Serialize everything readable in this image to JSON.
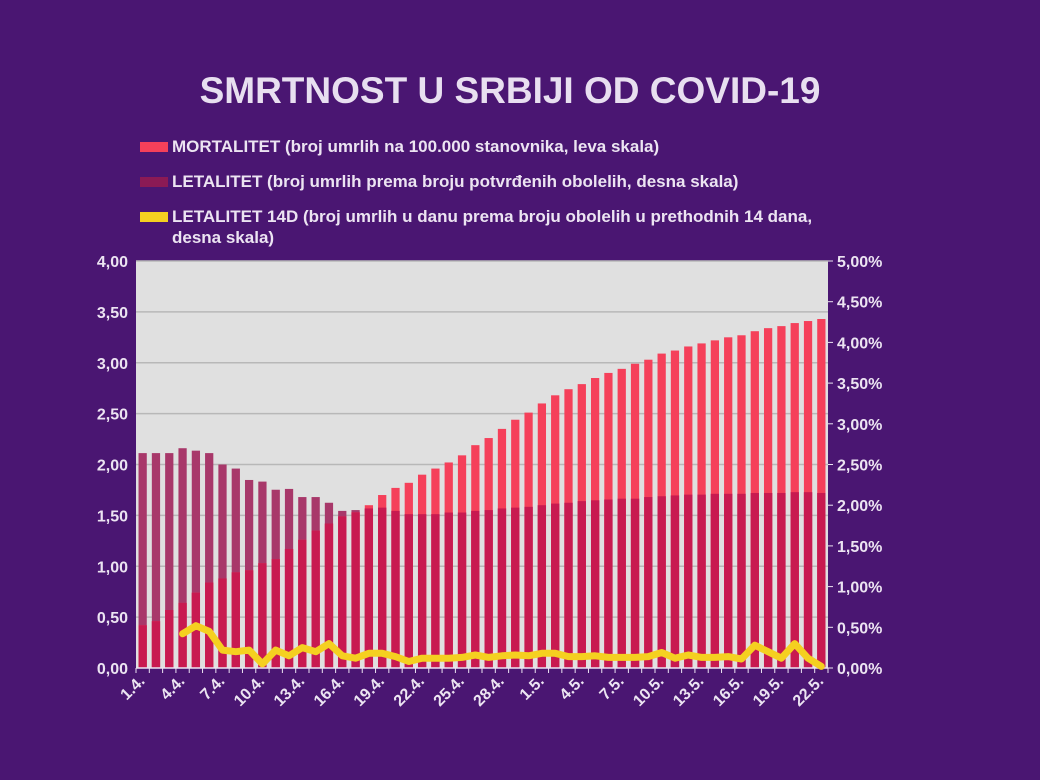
{
  "title": "SMRTNOST U SRBIJI OD COVID-19",
  "legend": [
    {
      "label": "MORTALITET (broj umrlih na 100.000 stanovnika, leva skala)",
      "color": "#f5405a"
    },
    {
      "label": "LETALITET (broj umrlih prema broju potvrđenih obolelih, desna skala)",
      "color": "#8b1a55"
    },
    {
      "label": "LETALITET 14D (broj umrlih u danu prema broju obolelih u prethodnih 14 dana, desna skala)",
      "color": "#f5d020"
    }
  ],
  "chart_data": {
    "type": "bar+line",
    "title": "SMRTNOST U SRBIJI OD COVID-19",
    "legend_position": "top",
    "grid": true,
    "background": "#e0e0e0",
    "left_axis": {
      "min": 0,
      "max": 4,
      "ticks": [
        "0,00",
        "0,50",
        "1,00",
        "1,50",
        "2,00",
        "2,50",
        "3,00",
        "3,50",
        "4,00"
      ]
    },
    "right_axis": {
      "min": 0,
      "max": 5,
      "unit": "%",
      "ticks": [
        "0,00%",
        "0,50%",
        "1,00%",
        "1,50%",
        "2,00%",
        "2,50%",
        "3,00%",
        "3,50%",
        "4,00%",
        "4,50%",
        "5,00%"
      ]
    },
    "x_tick_labels": [
      "1.4.",
      "4.4.",
      "7.4.",
      "10.4.",
      "13.4.",
      "16.4.",
      "19.4.",
      "22.4.",
      "25.4.",
      "28.4.",
      "1.5.",
      "4.5.",
      "7.5.",
      "10.5.",
      "13.5.",
      "16.5.",
      "19.5.",
      "22.5."
    ],
    "categories": [
      "1.4.",
      "2.4.",
      "3.4.",
      "4.4.",
      "5.4.",
      "6.4.",
      "7.4.",
      "8.4.",
      "9.4.",
      "10.4.",
      "11.4.",
      "12.4.",
      "13.4.",
      "14.4.",
      "15.4.",
      "16.4.",
      "17.4.",
      "18.4.",
      "19.4.",
      "20.4.",
      "21.4.",
      "22.4.",
      "23.4.",
      "24.4.",
      "25.4.",
      "26.4.",
      "27.4.",
      "28.4.",
      "29.4.",
      "30.4.",
      "1.5.",
      "2.5.",
      "3.5.",
      "4.5.",
      "5.5.",
      "6.5.",
      "7.5.",
      "8.5.",
      "9.5.",
      "10.5.",
      "11.5.",
      "12.5.",
      "13.5.",
      "14.5.",
      "15.5.",
      "16.5.",
      "17.5.",
      "18.5.",
      "19.5.",
      "20.5.",
      "21.5.",
      "22.5."
    ],
    "series": [
      {
        "name": "MORTALITET",
        "type": "bar",
        "axis": "left",
        "color": "#f5405a",
        "values": [
          0.42,
          0.46,
          0.57,
          0.64,
          0.74,
          0.84,
          0.88,
          0.94,
          0.96,
          1.03,
          1.07,
          1.17,
          1.26,
          1.35,
          1.42,
          1.49,
          1.53,
          1.6,
          1.7,
          1.77,
          1.82,
          1.9,
          1.96,
          2.02,
          2.09,
          2.19,
          2.26,
          2.35,
          2.44,
          2.51,
          2.6,
          2.68,
          2.74,
          2.79,
          2.85,
          2.9,
          2.94,
          2.99,
          3.03,
          3.09,
          3.12,
          3.16,
          3.19,
          3.22,
          3.25,
          3.27,
          3.31,
          3.34,
          3.36,
          3.39,
          3.41,
          3.43
        ]
      },
      {
        "name": "LETALITET",
        "type": "bar",
        "axis": "right",
        "color": "#8b1a55",
        "values": [
          2.64,
          2.64,
          2.64,
          2.7,
          2.67,
          2.64,
          2.5,
          2.45,
          2.31,
          2.29,
          2.19,
          2.2,
          2.1,
          2.1,
          2.03,
          1.93,
          1.94,
          1.96,
          1.97,
          1.93,
          1.89,
          1.89,
          1.89,
          1.91,
          1.91,
          1.93,
          1.94,
          1.96,
          1.97,
          1.98,
          2.0,
          2.02,
          2.03,
          2.05,
          2.06,
          2.07,
          2.08,
          2.08,
          2.1,
          2.11,
          2.12,
          2.13,
          2.13,
          2.14,
          2.14,
          2.14,
          2.15,
          2.15,
          2.15,
          2.16,
          2.16,
          2.15
        ]
      },
      {
        "name": "LETALITET 14D",
        "type": "line",
        "axis": "right",
        "color": "#f5d020",
        "values": [
          null,
          null,
          null,
          0.42,
          0.52,
          0.45,
          0.22,
          0.2,
          0.22,
          0.05,
          0.22,
          0.15,
          0.25,
          0.2,
          0.3,
          0.15,
          0.12,
          0.18,
          0.18,
          0.14,
          0.08,
          0.12,
          0.12,
          0.12,
          0.13,
          0.16,
          0.13,
          0.15,
          0.16,
          0.15,
          0.18,
          0.18,
          0.14,
          0.14,
          0.15,
          0.13,
          0.13,
          0.13,
          0.14,
          0.19,
          0.12,
          0.16,
          0.13,
          0.13,
          0.14,
          0.11,
          0.28,
          0.2,
          0.12,
          0.3,
          0.12,
          0.02
        ]
      }
    ]
  }
}
